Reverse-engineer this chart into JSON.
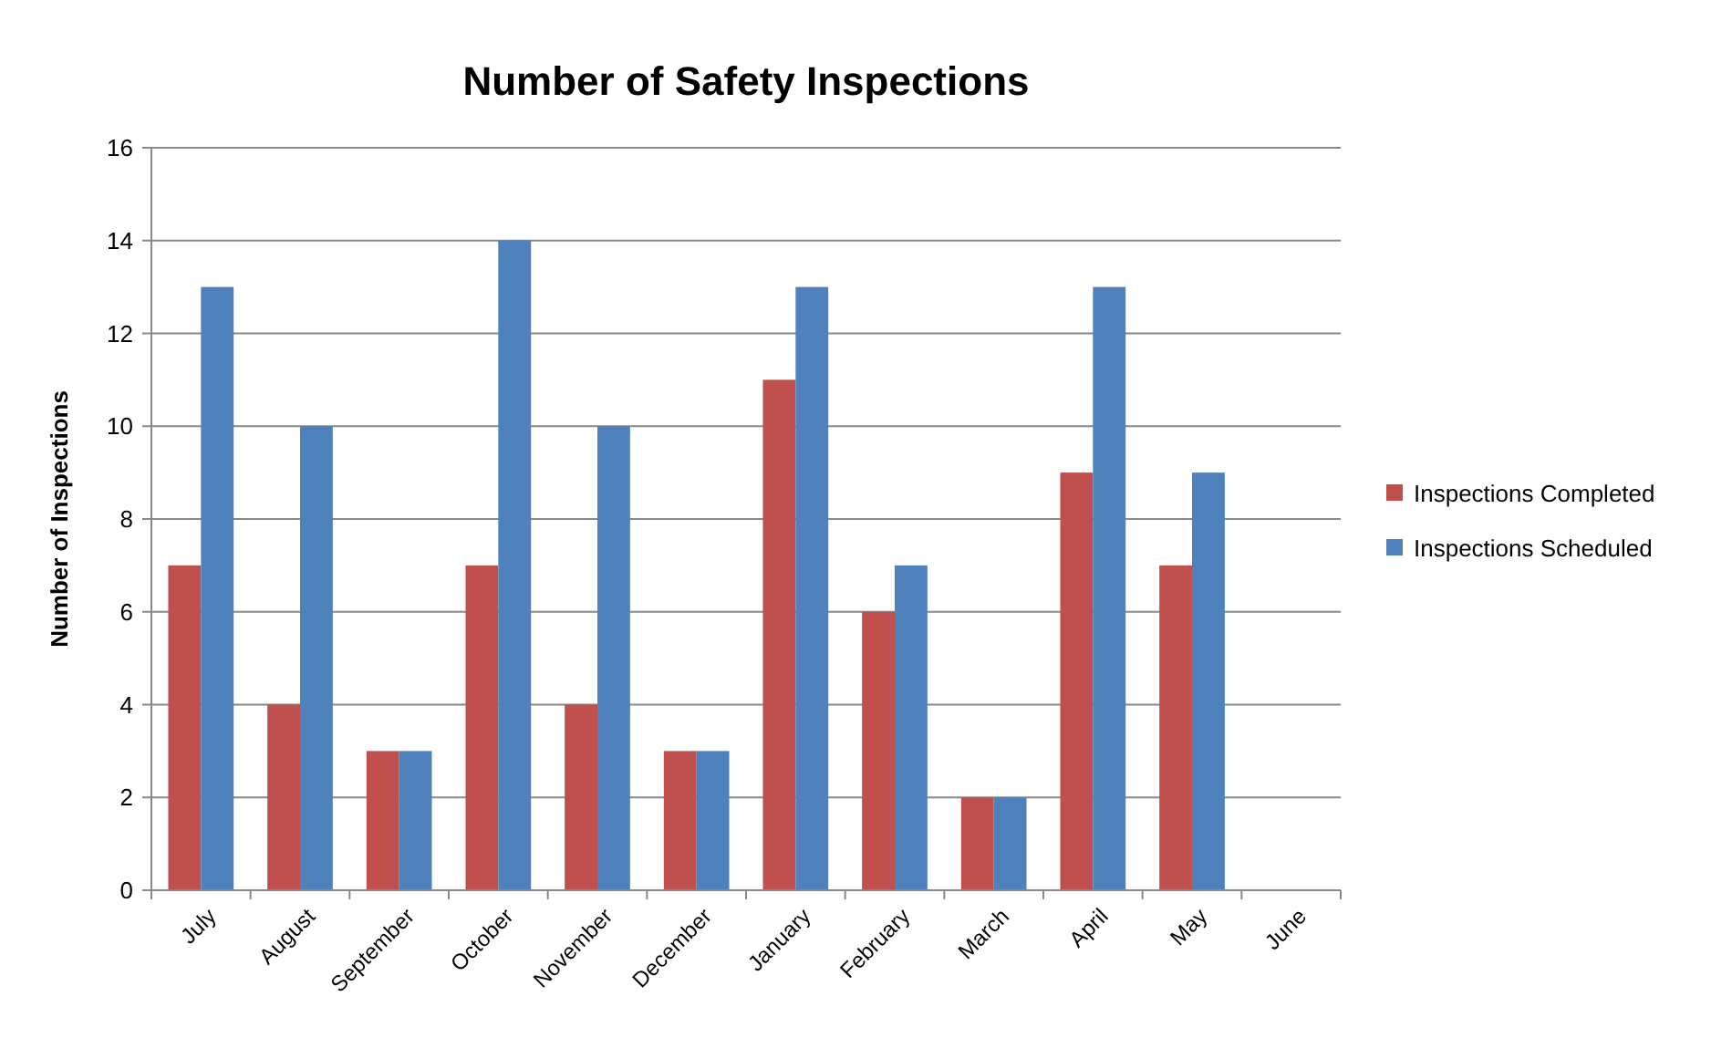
{
  "chart_data": {
    "type": "bar",
    "title": "Number of Safety Inspections",
    "ylabel": "Number of Inspections",
    "categories": [
      "July",
      "August",
      "September",
      "October",
      "November",
      "December",
      "January",
      "February",
      "March",
      "April",
      "May",
      "June"
    ],
    "series": [
      {
        "name": "Inspections Completed",
        "color": "#c0504d",
        "values": [
          7,
          4,
          3,
          7,
          4,
          3,
          11,
          6,
          2,
          9,
          7,
          null
        ]
      },
      {
        "name": "Inspections Scheduled",
        "color": "#4f81bd",
        "values": [
          13,
          10,
          3,
          14,
          10,
          3,
          13,
          7,
          2,
          13,
          9,
          null
        ]
      }
    ],
    "ylim": [
      0,
      16
    ],
    "yticks": [
      0,
      2,
      4,
      6,
      8,
      10,
      12,
      14,
      16
    ],
    "grid": "y",
    "legend": "right"
  }
}
